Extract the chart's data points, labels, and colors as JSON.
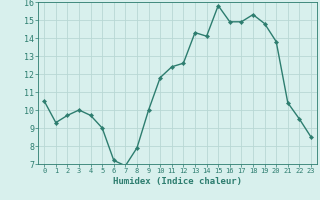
{
  "x": [
    0,
    1,
    2,
    3,
    4,
    5,
    6,
    7,
    8,
    9,
    10,
    11,
    12,
    13,
    14,
    15,
    16,
    17,
    18,
    19,
    20,
    21,
    22,
    23
  ],
  "y": [
    10.5,
    9.3,
    9.7,
    10.0,
    9.7,
    9.0,
    7.2,
    6.9,
    7.9,
    10.0,
    11.8,
    12.4,
    12.6,
    14.3,
    14.1,
    15.8,
    14.9,
    14.9,
    15.3,
    14.8,
    13.8,
    10.4,
    9.5,
    8.5
  ],
  "line_color": "#2d7d6f",
  "marker_color": "#2d7d6f",
  "bg_color": "#d8f0ed",
  "grid_color": "#b8d8d4",
  "xlabel": "Humidex (Indice chaleur)",
  "xlim": [
    -0.5,
    23.5
  ],
  "ylim": [
    7,
    16
  ],
  "yticks": [
    7,
    8,
    9,
    10,
    11,
    12,
    13,
    14,
    15,
    16
  ],
  "xticks": [
    0,
    1,
    2,
    3,
    4,
    5,
    6,
    7,
    8,
    9,
    10,
    11,
    12,
    13,
    14,
    15,
    16,
    17,
    18,
    19,
    20,
    21,
    22,
    23
  ],
  "xlabel_fontsize": 6.5,
  "tick_fontsize": 6.0,
  "line_width": 1.0,
  "marker_size": 2.2
}
